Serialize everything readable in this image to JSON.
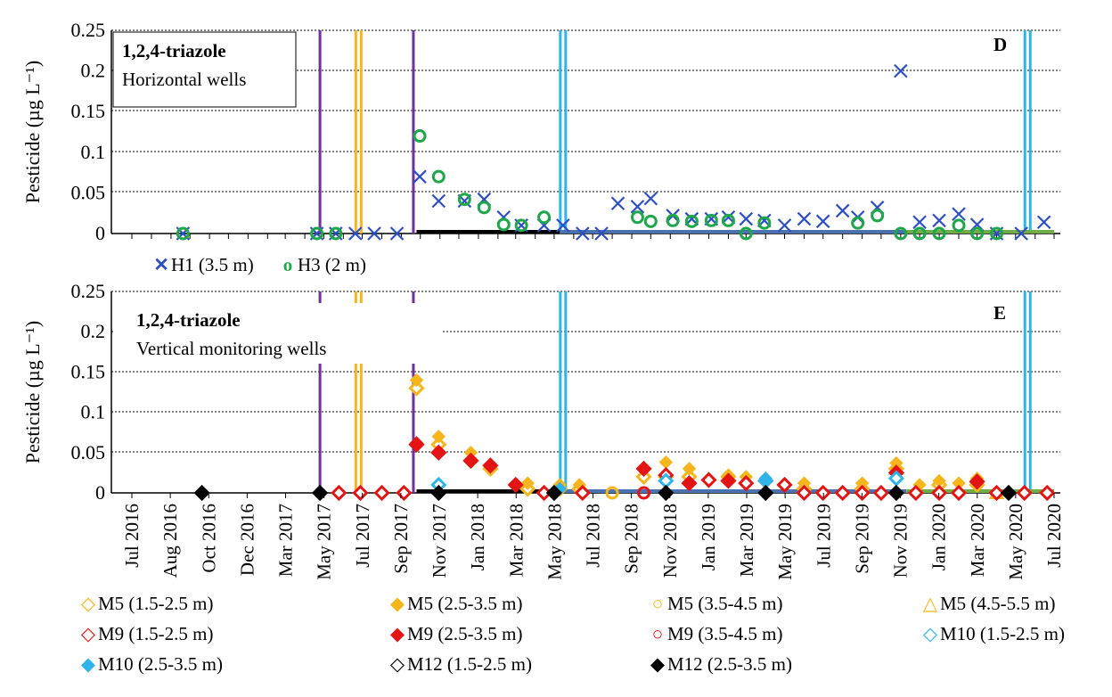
{
  "chart_data": [
    {
      "panel_letter": "D",
      "type": "scatter",
      "title": "1,2,4-triazole",
      "subtitle": "Horizontal wells",
      "ylabel": "Pesticide (µg L⁻¹)",
      "ylim": [
        0,
        0.25
      ],
      "yticks": [
        "0",
        "0.05",
        "0.1",
        "0.15",
        "0.2",
        "0.25"
      ],
      "grid": "horizontal dashed",
      "legend_position": "below",
      "series": [
        {
          "name": "H1 (3.5 m)",
          "marker": "x",
          "color": "#2e4fc4",
          "points": [
            [
              "2016-09-20",
              0
            ],
            [
              "2017-04-20",
              0
            ],
            [
              "2017-05-20",
              0
            ],
            [
              "2017-06-20",
              0
            ],
            [
              "2017-07-20",
              0
            ],
            [
              "2017-08-25",
              0
            ],
            [
              "2017-09-30",
              0.07
            ],
            [
              "2017-10-30",
              0.04
            ],
            [
              "2017-12-10",
              0.04
            ],
            [
              "2018-01-10",
              0.042
            ],
            [
              "2018-02-10",
              0.02
            ],
            [
              "2018-03-10",
              0.01
            ],
            [
              "2018-04-15",
              0.01
            ],
            [
              "2018-05-15",
              0.01
            ],
            [
              "2018-06-15",
              0
            ],
            [
              "2018-07-15",
              0
            ],
            [
              "2018-08-10",
              0.037
            ],
            [
              "2018-09-10",
              0.033
            ],
            [
              "2018-10-01",
              0.043
            ],
            [
              "2018-11-05",
              0.022
            ],
            [
              "2018-12-05",
              0.018
            ],
            [
              "2019-01-05",
              0.018
            ],
            [
              "2019-02-01",
              0.02
            ],
            [
              "2019-03-01",
              0.018
            ],
            [
              "2019-03-30",
              0.016
            ],
            [
              "2019-05-01",
              0.01
            ],
            [
              "2019-06-01",
              0.018
            ],
            [
              "2019-07-01",
              0.015
            ],
            [
              "2019-08-01",
              0.028
            ],
            [
              "2019-08-25",
              0.02
            ],
            [
              "2019-09-25",
              0.032
            ],
            [
              "2019-11-01",
              0.2
            ],
            [
              "2019-12-01",
              0.014
            ],
            [
              "2020-01-01",
              0.016
            ],
            [
              "2020-02-01",
              0.024
            ],
            [
              "2020-03-01",
              0.011
            ],
            [
              "2020-04-01",
              0
            ],
            [
              "2020-05-10",
              0
            ],
            [
              "2020-06-15",
              0.014
            ]
          ]
        },
        {
          "name": "H3 (2 m)",
          "marker": "o",
          "color": "#1fa64a",
          "points": [
            [
              "2016-09-20",
              0
            ],
            [
              "2017-04-20",
              0
            ],
            [
              "2017-05-20",
              0
            ],
            [
              "2017-09-30",
              0.12
            ],
            [
              "2017-10-30",
              0.07
            ],
            [
              "2017-12-10",
              0.042
            ],
            [
              "2018-01-10",
              0.032
            ],
            [
              "2018-02-10",
              0.011
            ],
            [
              "2018-03-10",
              0.01
            ],
            [
              "2018-04-15",
              0.02
            ],
            [
              "2018-09-10",
              0.02
            ],
            [
              "2018-10-01",
              0.015
            ],
            [
              "2018-11-05",
              0.016
            ],
            [
              "2018-12-05",
              0.015
            ],
            [
              "2019-01-05",
              0.016
            ],
            [
              "2019-02-01",
              0.016
            ],
            [
              "2019-03-01",
              0
            ],
            [
              "2019-03-30",
              0.013
            ],
            [
              "2019-08-25",
              0.013
            ],
            [
              "2019-09-25",
              0.022
            ],
            [
              "2019-11-01",
              0
            ],
            [
              "2019-12-01",
              0
            ],
            [
              "2020-01-01",
              0
            ],
            [
              "2020-02-01",
              0.01
            ],
            [
              "2020-03-01",
              0
            ],
            [
              "2020-04-01",
              0
            ]
          ]
        }
      ]
    },
    {
      "panel_letter": "E",
      "type": "scatter",
      "title": "1,2,4-triazole",
      "subtitle": "Vertical monitoring wells",
      "ylabel": "Pesticide (µg L⁻¹)",
      "ylim": [
        0,
        0.25
      ],
      "yticks": [
        "0",
        "0.05",
        "0.1",
        "0.15",
        "0.2",
        "0.25"
      ],
      "xticks": [
        "Jul 2016",
        "Aug 2016",
        "Oct 2016",
        "Dec 2016",
        "Mar 2017",
        "May 2017",
        "Jul 2017",
        "Sep 2017",
        "Nov 2017",
        "Jan 2018",
        "Mar 2018",
        "May 2018",
        "Jul 2018",
        "Sep 2018",
        "Nov 2018",
        "Jan 2019",
        "Mar 2019",
        "May 2019",
        "Jul 2019",
        "Sep 2019",
        "Nov 2019",
        "Jan 2020",
        "Mar 2020",
        "May 2020",
        "Jul 2020"
      ],
      "grid": "horizontal dashed",
      "legend_position": "below",
      "series": [
        {
          "name": "M5 (1.5-2.5 m)",
          "marker": "diamond-open",
          "color": "#f5b51c",
          "points": [
            [
              "2017-09-25",
              0.13
            ],
            [
              "2017-10-30",
              0.06
            ],
            [
              "2017-12-20",
              0.04
            ],
            [
              "2018-01-20",
              0.03
            ],
            [
              "2018-03-20",
              0.005
            ],
            [
              "2018-05-10",
              0.005
            ],
            [
              "2018-06-10",
              0.005
            ],
            [
              "2018-09-20",
              0.02
            ],
            [
              "2018-10-25",
              0.02
            ],
            [
              "2018-12-01",
              0.02
            ],
            [
              "2019-02-01",
              0.02
            ],
            [
              "2019-04-01",
              0.015
            ],
            [
              "2019-06-01",
              0.005
            ],
            [
              "2019-09-01",
              0.005
            ],
            [
              "2019-10-25",
              0.03
            ],
            [
              "2020-01-01",
              0.01
            ],
            [
              "2020-03-01",
              0.01
            ]
          ]
        },
        {
          "name": "M5 (2.5-3.5 m)",
          "marker": "diamond",
          "color": "#f5b51c",
          "points": [
            [
              "2017-09-25",
              0.14
            ],
            [
              "2017-10-30",
              0.07
            ],
            [
              "2017-12-20",
              0.05
            ],
            [
              "2018-01-20",
              0.035
            ],
            [
              "2018-03-20",
              0.012
            ],
            [
              "2018-05-10",
              0.01
            ],
            [
              "2018-06-10",
              0.01
            ],
            [
              "2018-09-20",
              0.03
            ],
            [
              "2018-10-25",
              0.038
            ],
            [
              "2018-12-01",
              0.03
            ],
            [
              "2019-02-01",
              0.022
            ],
            [
              "2019-03-01",
              0.02
            ],
            [
              "2019-04-01",
              0.018
            ],
            [
              "2019-06-01",
              0.012
            ],
            [
              "2019-09-01",
              0.012
            ],
            [
              "2019-10-25",
              0.037
            ],
            [
              "2019-12-01",
              0.01
            ],
            [
              "2020-01-01",
              0.015
            ],
            [
              "2020-02-01",
              0.012
            ],
            [
              "2020-03-01",
              0.018
            ]
          ]
        },
        {
          "name": "M5 (3.5-4.5 m)",
          "marker": "circle-open",
          "color": "#f5b51c",
          "points": [
            [
              "2018-08-01",
              0
            ]
          ]
        },
        {
          "name": "M5 (4.5-5.5 m)",
          "marker": "triangle-open",
          "color": "#f5b51c",
          "points": [
            [
              "2019-10-25",
              0.03
            ],
            [
              "2020-04-01",
              0
            ]
          ]
        },
        {
          "name": "M9 (1.5-2.5 m)",
          "marker": "diamond-open",
          "color": "#e31414",
          "points": [
            [
              "2017-05-25",
              0
            ],
            [
              "2017-06-28",
              0
            ],
            [
              "2017-08-01",
              0
            ],
            [
              "2017-09-05",
              0
            ],
            [
              "2017-09-25",
              0.06
            ],
            [
              "2017-10-30",
              0.05
            ],
            [
              "2017-12-20",
              0.04
            ],
            [
              "2018-01-20",
              0.034
            ],
            [
              "2018-03-01",
              0.01
            ],
            [
              "2018-04-15",
              0
            ],
            [
              "2018-06-15",
              0
            ],
            [
              "2018-09-20",
              0.03
            ],
            [
              "2018-10-25",
              0.022
            ],
            [
              "2018-12-01",
              0.012
            ],
            [
              "2019-01-01",
              0.016
            ],
            [
              "2019-02-01",
              0.015
            ],
            [
              "2019-03-01",
              0.012
            ],
            [
              "2019-04-01",
              0.015
            ],
            [
              "2019-05-01",
              0.01
            ],
            [
              "2019-06-01",
              0
            ],
            [
              "2019-07-01",
              0
            ],
            [
              "2019-08-01",
              0
            ],
            [
              "2019-09-01",
              0
            ],
            [
              "2019-10-01",
              0
            ],
            [
              "2019-10-25",
              0.025
            ],
            [
              "2019-11-25",
              0
            ],
            [
              "2020-01-01",
              0
            ],
            [
              "2020-02-01",
              0
            ],
            [
              "2020-03-01",
              0.014
            ],
            [
              "2020-04-01",
              0
            ],
            [
              "2020-05-15",
              0
            ],
            [
              "2020-06-20",
              0
            ]
          ]
        },
        {
          "name": "M9 (2.5-3.5 m)",
          "marker": "diamond",
          "color": "#e31414",
          "points": [
            [
              "2017-09-25",
              0.062
            ],
            [
              "2017-10-30",
              0.05
            ],
            [
              "2017-12-20",
              0.04
            ],
            [
              "2018-01-20",
              0.035
            ],
            [
              "2018-03-01",
              0.01
            ],
            [
              "2018-09-20",
              0.03
            ],
            [
              "2018-12-01",
              0.012
            ],
            [
              "2019-02-01",
              0.015
            ],
            [
              "2019-10-25",
              0.025
            ],
            [
              "2020-03-01",
              0.015
            ]
          ]
        },
        {
          "name": "M9 (3.5-4.5 m)",
          "marker": "circle-open",
          "color": "#e31414",
          "points": [
            [
              "2018-09-20",
              0
            ]
          ]
        },
        {
          "name": "M10 (1.5-2.5 m)",
          "marker": "diamond-open",
          "color": "#2eb4e8",
          "points": [
            [
              "2017-10-30",
              0.01
            ],
            [
              "2018-10-25",
              0.015
            ],
            [
              "2019-04-01",
              0.015
            ],
            [
              "2019-10-25",
              0.018
            ]
          ]
        },
        {
          "name": "M10 (2.5-3.5 m)",
          "marker": "diamond",
          "color": "#2eb4e8",
          "points": [
            [
              "2018-05-10",
              0.005
            ],
            [
              "2019-04-01",
              0.018
            ]
          ]
        },
        {
          "name": "M12 (1.5-2.5 m)",
          "marker": "diamond-open",
          "color": "#000000",
          "points": [
            [
              "2016-10-20",
              0
            ],
            [
              "2017-04-25",
              0
            ],
            [
              "2017-10-30",
              0
            ],
            [
              "2018-05-01",
              0
            ],
            [
              "2018-10-25",
              0
            ],
            [
              "2019-04-01",
              0
            ],
            [
              "2019-10-25",
              0
            ],
            [
              "2020-04-20",
              0
            ]
          ]
        },
        {
          "name": "M12 (2.5-3.5 m)",
          "marker": "diamond",
          "color": "#000000",
          "points": [
            [
              "2016-10-20",
              0
            ],
            [
              "2017-04-25",
              0
            ],
            [
              "2017-10-30",
              0
            ],
            [
              "2018-05-01",
              0
            ],
            [
              "2018-10-25",
              0
            ],
            [
              "2019-04-01",
              0
            ],
            [
              "2019-10-25",
              0
            ],
            [
              "2020-04-20",
              0
            ]
          ]
        }
      ]
    }
  ],
  "event_lines": {
    "purple": {
      "color": "#7030a0",
      "dates": [
        "2017-04-25",
        "2017-09-20"
      ]
    },
    "orange": {
      "color": "#f5b51c",
      "dates": [
        "2017-06-25"
      ]
    },
    "blue": {
      "color": "#2eb4e8",
      "dates": [
        "2018-05-15",
        "2020-05-20"
      ]
    }
  },
  "period_bars": [
    {
      "color": "#000000",
      "start": "2017-09-25",
      "end": "2018-05-10"
    },
    {
      "color": "#4a72b0",
      "start": "2018-05-10",
      "end": "2019-11-10"
    },
    {
      "color": "#70ad47",
      "start": "2019-11-10",
      "end": "2020-07-01"
    }
  ]
}
